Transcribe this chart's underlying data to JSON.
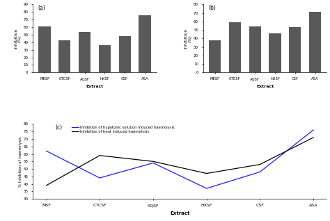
{
  "categories": [
    "MESF",
    "CTCSF",
    "AQSF",
    "HXSF",
    "CSF",
    "ASA"
  ],
  "bar_a_values": [
    61,
    43,
    54,
    36,
    48,
    76
  ],
  "bar_b_values": [
    38,
    59,
    54,
    46,
    53,
    71
  ],
  "bar_color": "#595959",
  "bar_a_ylim": [
    0,
    90
  ],
  "bar_b_ylim": [
    0,
    80
  ],
  "bar_a_yticks": [
    0,
    10,
    20,
    30,
    40,
    50,
    60,
    70,
    80,
    90
  ],
  "bar_b_yticks": [
    0,
    10,
    20,
    30,
    40,
    50,
    60,
    70,
    80
  ],
  "label_a": "(a)",
  "label_b": "(b)",
  "label_c": "(c)",
  "xlabel": "Extract",
  "ylabel_a": "Inhibition\n(%)",
  "ylabel_b": "Inhibition\n(%)",
  "ylabel_c": "% Inhibition of haemolysis",
  "line_categories": [
    "MSF",
    "CTCSF",
    "AQSF",
    "HXSF",
    "CSF",
    "ASA"
  ],
  "line_hypotonic": [
    62,
    44,
    54,
    37,
    48,
    76
  ],
  "line_heat": [
    39,
    59,
    55,
    47,
    53,
    71
  ],
  "line_hypotonic_color": "#1a1aff",
  "line_heat_color": "#000000",
  "line_c_ylim": [
    30,
    80
  ],
  "line_c_yticks": [
    30,
    35,
    40,
    45,
    50,
    55,
    60,
    65,
    70,
    75,
    80
  ],
  "legend_hypotonic": "Inhibition of hypotonic solution induced haemolysis",
  "legend_heat": "Inhibition of heat induced haemolysis",
  "background_color": "#ffffff"
}
